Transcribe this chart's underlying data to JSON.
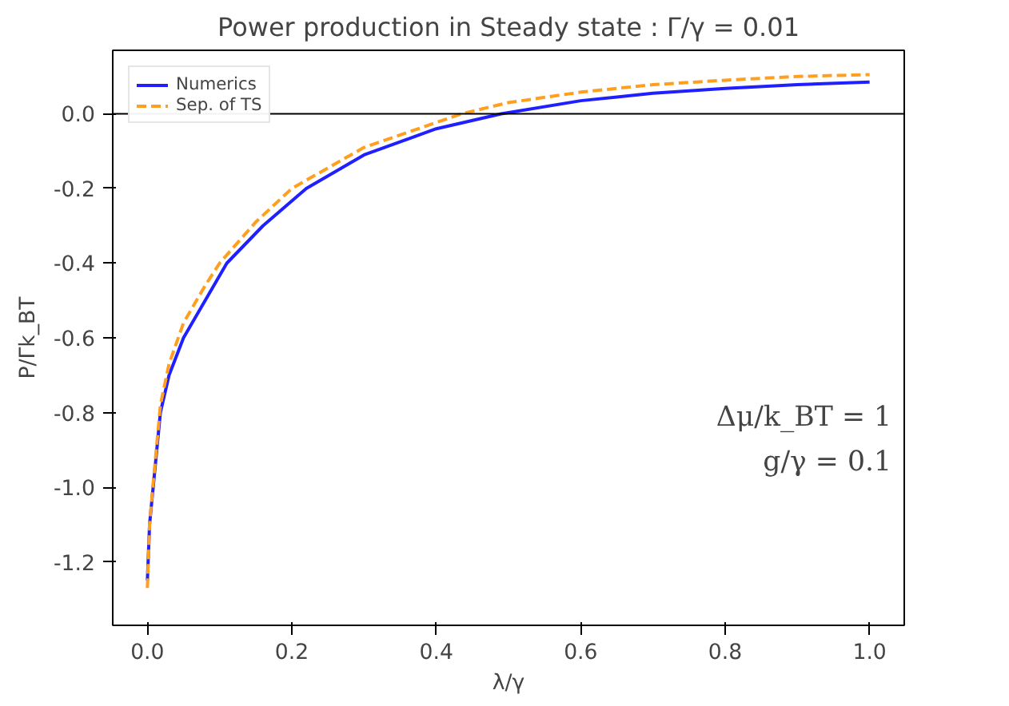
{
  "chart_data": {
    "type": "line",
    "title": "Power production in Steady state : Γ/γ = 0.01",
    "xlabel": "λ/γ",
    "ylabel": "P/Γk_BT",
    "xlim": [
      -0.048,
      1.048
    ],
    "ylim": [
      -1.37,
      0.17
    ],
    "xticks": [
      {
        "value": 0,
        "label": "0.0"
      },
      0.2,
      0.4,
      0.6,
      0.8,
      {
        "value": 1,
        "label": "1.0"
      }
    ],
    "yticks": [
      -1.2,
      {
        "value": -1,
        "label": "-1.0"
      },
      -0.8,
      -0.6,
      -0.4,
      -0.2,
      {
        "value": 0,
        "label": "0.0"
      }
    ],
    "grid": false,
    "legend": "top left",
    "marker": "none",
    "ref_lines": [
      {
        "axis": "y",
        "value": 0,
        "label": null,
        "color": "#000000",
        "line_style": "solid"
      }
    ],
    "annotations": [
      "Δμ/k_BT = 1",
      "g/γ = 0.1"
    ],
    "series": [
      {
        "name": "Numerics",
        "color": "#1f1fff",
        "line_style": "solid",
        "x": [
          0,
          0.003,
          0.008,
          0.018,
          0.03,
          0.05,
          0.08,
          0.11,
          0.16,
          0.22,
          0.3,
          0.4,
          0.49,
          0.6,
          0.7,
          0.8,
          0.9,
          1.0
        ],
        "values": [
          -1.25,
          -1.1,
          -1.0,
          -0.8,
          -0.7,
          -0.6,
          -0.5,
          -0.4,
          -0.3,
          -0.2,
          -0.11,
          -0.04,
          0.0,
          0.035,
          0.055,
          0.068,
          0.078,
          0.085
        ]
      },
      {
        "name": "Sep. of TS",
        "color": "#ff9f1f",
        "line_style": "dashed",
        "x": [
          0,
          0.003,
          0.008,
          0.018,
          0.03,
          0.05,
          0.08,
          0.1,
          0.15,
          0.2,
          0.3,
          0.435,
          0.5,
          0.6,
          0.7,
          0.8,
          0.9,
          1.0
        ],
        "values": [
          -1.27,
          -1.1,
          -0.99,
          -0.78,
          -0.67,
          -0.56,
          -0.46,
          -0.4,
          -0.29,
          -0.2,
          -0.09,
          0.0,
          0.03,
          0.058,
          0.078,
          0.09,
          0.1,
          0.105
        ]
      }
    ]
  }
}
